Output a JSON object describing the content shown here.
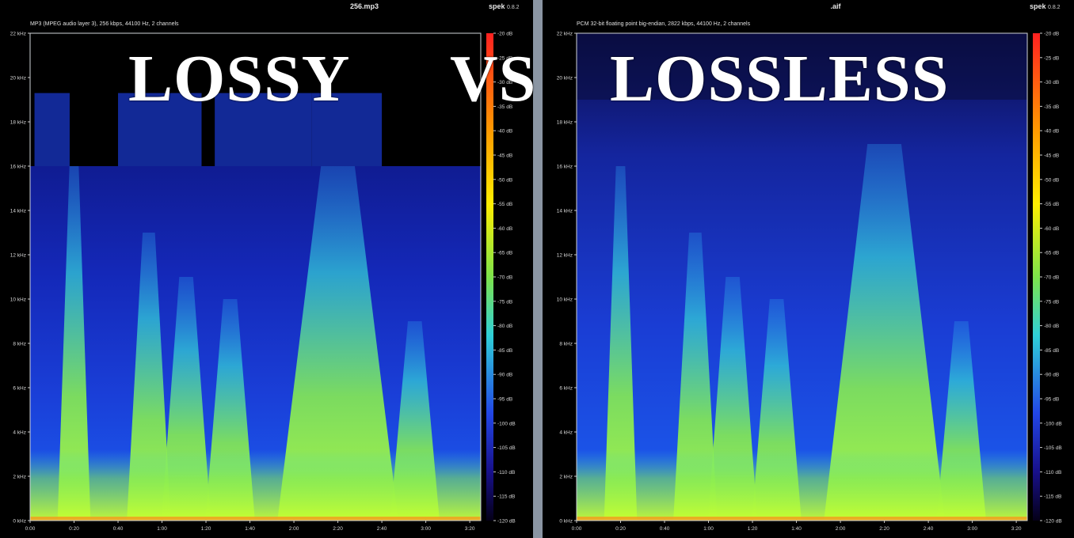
{
  "overlay": {
    "left_word": "LOSSY",
    "vs_word": "VS",
    "right_word": "LOSSLESS"
  },
  "app": {
    "name": "spek",
    "version": "0.8.2"
  },
  "colors": {
    "background": "#000000",
    "divider": "#8a95a3",
    "frame": "#cfd3d8"
  },
  "legend": {
    "ticks": [
      "-20 dB",
      "-25 dB",
      "-30 dB",
      "-35 dB",
      "-40 dB",
      "-45 dB",
      "-50 dB",
      "-55 dB",
      "-60 dB",
      "-65 dB",
      "-70 dB",
      "-75 dB",
      "-80 dB",
      "-85 dB",
      "-90 dB",
      "-95 dB",
      "-100 dB",
      "-105 dB",
      "-110 dB",
      "-115 dB",
      "-120 dB"
    ],
    "range_db": [
      -120,
      -20
    ]
  },
  "chart_data": [
    {
      "type": "heatmap",
      "title": "256.mp3",
      "subtitle": "MP3 (MPEG audio layer 3), 256 kbps, 44100 Hz, 2 channels",
      "xlabel": "",
      "ylabel": "",
      "x_ticks": [
        "0:00",
        "0:20",
        "0:40",
        "1:00",
        "1:20",
        "1:40",
        "2:00",
        "2:20",
        "2:40",
        "3:00",
        "3:20"
      ],
      "y_ticks": [
        "0 kHz",
        "2 kHz",
        "4 kHz",
        "6 kHz",
        "8 kHz",
        "10 kHz",
        "12 kHz",
        "14 kHz",
        "16 kHz",
        "18 kHz",
        "20 kHz",
        "22 kHz"
      ],
      "xlim": [
        0,
        205
      ],
      "ylim": [
        0,
        22
      ],
      "cutoff_khz": 16,
      "cutoff_peaks_khz": 19.3,
      "transients_s": [
        17,
        24,
        52,
        60,
        72,
        88,
        104,
        128,
        136,
        142,
        150,
        158,
        170,
        182,
        198
      ]
    },
    {
      "type": "heatmap",
      "title": ".aif",
      "subtitle": "PCM 32-bit floating point big-endian, 2822 kbps, 44100 Hz, 2 channels",
      "xlabel": "",
      "ylabel": "",
      "x_ticks": [
        "0:00",
        "0:20",
        "0:40",
        "1:00",
        "1:20",
        "1:40",
        "2:00",
        "2:20",
        "2:40",
        "3:00",
        "3:20"
      ],
      "y_ticks": [
        "0 kHz",
        "2 kHz",
        "4 kHz",
        "6 kHz",
        "8 kHz",
        "10 kHz",
        "12 kHz",
        "14 kHz",
        "16 kHz",
        "18 kHz",
        "20 kHz",
        "22 kHz"
      ],
      "xlim": [
        0,
        205
      ],
      "ylim": [
        0,
        22
      ],
      "cutoff_khz": 22,
      "transients_s": [
        17,
        24,
        52,
        60,
        72,
        88,
        104,
        128,
        136,
        142,
        150,
        158,
        170,
        182,
        198
      ]
    }
  ]
}
